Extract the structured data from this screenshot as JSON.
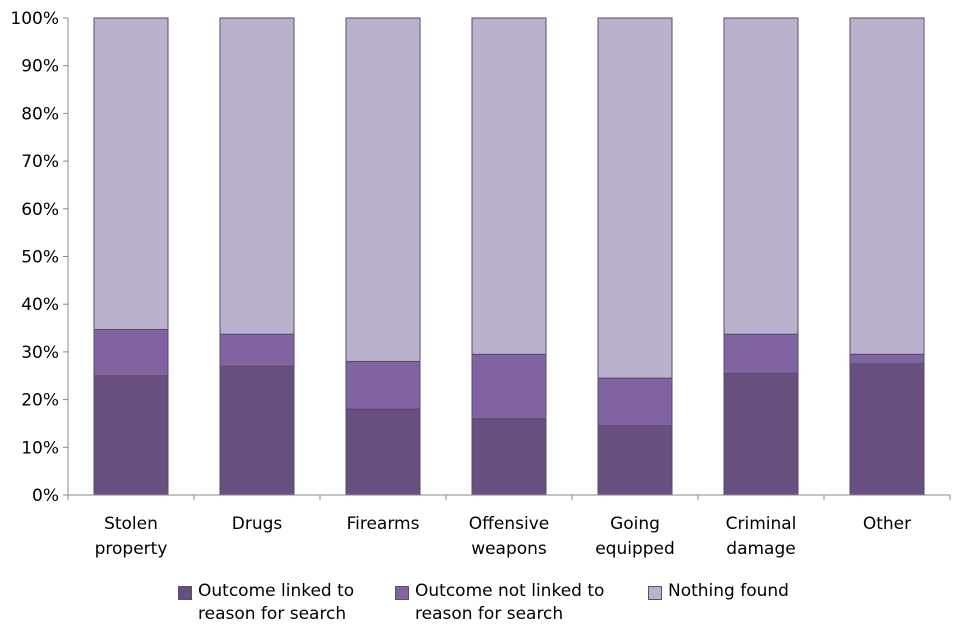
{
  "chart_data": {
    "type": "bar",
    "stacked": true,
    "categories": [
      "Stolen\nproperty",
      "Drugs",
      "Firearms",
      "Offensive\nweapons",
      "Going\nequipped",
      "Criminal\ndamage",
      "Other"
    ],
    "series": [
      {
        "name": "Outcome linked to\nreason for search",
        "color": "#67507f",
        "values": [
          25,
          27,
          18,
          16,
          14.5,
          25.5,
          27.5
        ]
      },
      {
        "name": "Outcome not linked to\nreason for search",
        "color": "#8064a2",
        "values": [
          9.7,
          6.7,
          10,
          13.5,
          10,
          8.2,
          2
        ]
      },
      {
        "name": "Nothing found",
        "color": "#bab2cc",
        "values": [
          65.3,
          66.3,
          72,
          70.5,
          75.5,
          66.3,
          70.5
        ]
      }
    ],
    "yticks": [
      "0%",
      "10%",
      "20%",
      "30%",
      "40%",
      "50%",
      "60%",
      "70%",
      "80%",
      "90%",
      "100%"
    ],
    "ylim": [
      0,
      100
    ],
    "title": "",
    "xlabel": "",
    "ylabel": "",
    "grid": false,
    "legend_position": "bottom"
  }
}
